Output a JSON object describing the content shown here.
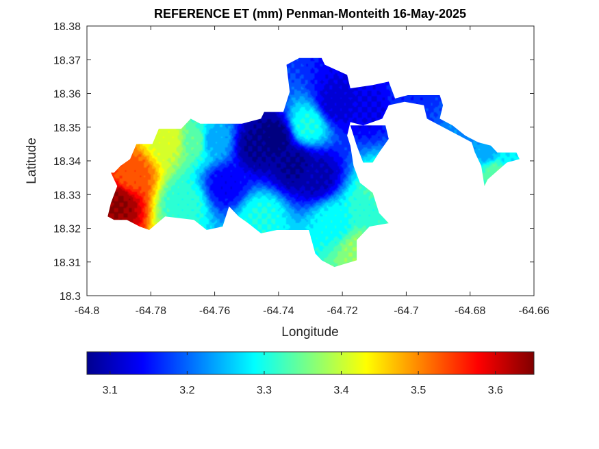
{
  "chart_data": {
    "type": "heatmap",
    "title": "REFERENCE ET (mm) Penman-Monteith 16-May-2025",
    "xlabel": "Longitude",
    "ylabel": "Latitude",
    "xlim": [
      -64.8,
      -64.66
    ],
    "ylim": [
      18.3,
      18.38
    ],
    "x_ticks": [
      "-64.8",
      "-64.78",
      "-64.76",
      "-64.74",
      "-64.72",
      "-64.7",
      "-64.68",
      "-64.66"
    ],
    "y_ticks": [
      "18.3",
      "18.31",
      "18.32",
      "18.33",
      "18.34",
      "18.35",
      "18.36",
      "18.37",
      "18.38"
    ],
    "colorbar": {
      "colormap": "jet",
      "range": [
        3.07,
        3.65
      ],
      "ticks": [
        "3.1",
        "3.2",
        "3.3",
        "3.4",
        "3.5",
        "3.6"
      ]
    },
    "grid": false,
    "field": {
      "hotspots": [
        {
          "lon": -64.7905,
          "lat": 18.3275,
          "value": 3.64
        },
        {
          "lon": -64.786,
          "lat": 18.336,
          "value": 3.53
        },
        {
          "lon": -64.7745,
          "lat": 18.346,
          "value": 3.41
        },
        {
          "lon": -64.766,
          "lat": 18.346,
          "value": 3.34
        },
        {
          "lon": -64.747,
          "lat": 18.3445,
          "value": 3.08
        },
        {
          "lon": -64.741,
          "lat": 18.347,
          "value": 3.07
        },
        {
          "lon": -64.735,
          "lat": 18.339,
          "value": 3.08
        },
        {
          "lon": -64.728,
          "lat": 18.3355,
          "value": 3.1
        },
        {
          "lon": -64.7565,
          "lat": 18.333,
          "value": 3.14
        },
        {
          "lon": -64.722,
          "lat": 18.357,
          "value": 3.12
        },
        {
          "lon": -64.711,
          "lat": 18.356,
          "value": 3.13
        },
        {
          "lon": -64.699,
          "lat": 18.359,
          "value": 3.16
        },
        {
          "lon": -64.7,
          "lat": 18.354,
          "value": 3.18
        },
        {
          "lon": -64.731,
          "lat": 18.3505,
          "value": 3.3
        },
        {
          "lon": -64.7455,
          "lat": 18.3235,
          "value": 3.3
        },
        {
          "lon": -64.7225,
          "lat": 18.3215,
          "value": 3.29
        },
        {
          "lon": -64.7125,
          "lat": 18.3255,
          "value": 3.31
        },
        {
          "lon": -64.715,
          "lat": 18.3135,
          "value": 3.37
        },
        {
          "lon": -64.7695,
          "lat": 18.3275,
          "value": 3.31
        },
        {
          "lon": -64.7605,
          "lat": 18.346,
          "value": 3.24
        },
        {
          "lon": -64.68,
          "lat": 18.3485,
          "value": 3.22
        },
        {
          "lon": -64.6745,
          "lat": 18.3425,
          "value": 3.24
        },
        {
          "lon": -64.668,
          "lat": 18.3405,
          "value": 3.28
        },
        {
          "lon": -64.672,
          "lat": 18.337,
          "value": 3.34
        },
        {
          "lon": -64.707,
          "lat": 18.3315,
          "value": 3.35
        }
      ],
      "region_outline": [
        [
          -64.7915,
          18.3365
        ],
        [
          -64.7895,
          18.3385
        ],
        [
          -64.7865,
          18.3405
        ],
        [
          -64.7845,
          18.345
        ],
        [
          -64.7795,
          18.345
        ],
        [
          -64.7775,
          18.3495
        ],
        [
          -64.7705,
          18.3495
        ],
        [
          -64.7675,
          18.3525
        ],
        [
          -64.7645,
          18.351
        ],
        [
          -64.7515,
          18.351
        ],
        [
          -64.7455,
          18.3525
        ],
        [
          -64.7445,
          18.3545
        ],
        [
          -64.7385,
          18.3545
        ],
        [
          -64.7365,
          18.3605
        ],
        [
          -64.7375,
          18.3685
        ],
        [
          -64.7335,
          18.3705
        ],
        [
          -64.7265,
          18.3705
        ],
        [
          -64.7255,
          18.3685
        ],
        [
          -64.7185,
          18.3655
        ],
        [
          -64.7175,
          18.3615
        ],
        [
          -64.7105,
          18.3625
        ],
        [
          -64.7055,
          18.3635
        ],
        [
          -64.7035,
          18.3585
        ],
        [
          -64.6995,
          18.3595
        ],
        [
          -64.6895,
          18.3595
        ],
        [
          -64.6885,
          18.3565
        ],
        [
          -64.6895,
          18.3525
        ],
        [
          -64.6855,
          18.3505
        ],
        [
          -64.6815,
          18.3475
        ],
        [
          -64.6775,
          18.3455
        ],
        [
          -64.6735,
          18.3445
        ],
        [
          -64.6715,
          18.3425
        ],
        [
          -64.6655,
          18.3425
        ],
        [
          -64.6645,
          18.3405
        ],
        [
          -64.6685,
          18.3395
        ],
        [
          -64.6745,
          18.3345
        ],
        [
          -64.6755,
          18.3325
        ],
        [
          -64.6765,
          18.3385
        ],
        [
          -64.6785,
          18.3425
        ],
        [
          -64.6795,
          18.3455
        ],
        [
          -64.6855,
          18.3485
        ],
        [
          -64.6935,
          18.3525
        ],
        [
          -64.6945,
          18.3565
        ],
        [
          -64.7005,
          18.3575
        ],
        [
          -64.7055,
          18.3565
        ],
        [
          -64.7075,
          18.3525
        ],
        [
          -64.7135,
          18.3505
        ],
        [
          -64.7175,
          18.3515
        ],
        [
          -64.7185,
          18.3475
        ],
        [
          -64.7175,
          18.3445
        ],
        [
          -64.7165,
          18.3385
        ],
        [
          -64.7145,
          18.3335
        ],
        [
          -64.7105,
          18.3305
        ],
        [
          -64.7085,
          18.3245
        ],
        [
          -64.7055,
          18.3215
        ],
        [
          -64.7115,
          18.3205
        ],
        [
          -64.7155,
          18.3165
        ],
        [
          -64.7155,
          18.3105
        ],
        [
          -64.7225,
          18.3085
        ],
        [
          -64.7265,
          18.3105
        ],
        [
          -64.7285,
          18.3125
        ],
        [
          -64.7305,
          18.3195
        ],
        [
          -64.7405,
          18.3195
        ],
        [
          -64.7455,
          18.3185
        ],
        [
          -64.7495,
          18.3215
        ],
        [
          -64.7525,
          18.3235
        ],
        [
          -64.7555,
          18.3265
        ],
        [
          -64.7575,
          18.3205
        ],
        [
          -64.7625,
          18.3195
        ],
        [
          -64.7665,
          18.3225
        ],
        [
          -64.7755,
          18.3235
        ],
        [
          -64.7805,
          18.3195
        ],
        [
          -64.7835,
          18.3205
        ],
        [
          -64.7875,
          18.3225
        ],
        [
          -64.7915,
          18.3225
        ],
        [
          -64.7935,
          18.3235
        ],
        [
          -64.7925,
          18.3275
        ],
        [
          -64.7905,
          18.3325
        ],
        [
          -64.7915,
          18.3345
        ],
        [
          -64.7925,
          18.3365
        ]
      ],
      "excluded_notch": [
        [
          -64.7175,
          18.3505
        ],
        [
          -64.7065,
          18.3505
        ],
        [
          -64.7055,
          18.3465
        ],
        [
          -64.7085,
          18.3425
        ],
        [
          -64.7105,
          18.3395
        ],
        [
          -64.7135,
          18.3395
        ],
        [
          -64.7155,
          18.3445
        ]
      ]
    }
  }
}
